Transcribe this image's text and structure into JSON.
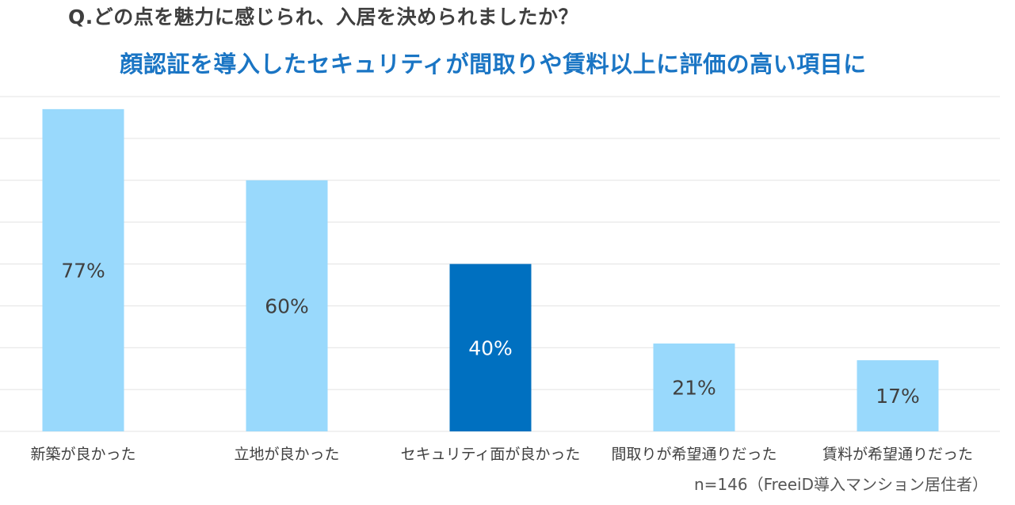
{
  "question": "Q.どの点を魅力に感じられ、入居を決められましたか？",
  "headline": "顔認証を導入したセキュリティが間取りや賃料以上に評価の高い項目に",
  "note": "n=146（FreeiD導入マンション居住者）",
  "chart_data": {
    "type": "bar",
    "categories": [
      "新築が良かった",
      "立地が良かった",
      "セキュリティ面が良かった",
      "間取りが希望通りだった",
      "賃料が希望通りだった"
    ],
    "values": [
      77,
      60,
      40,
      21,
      17
    ],
    "value_labels": [
      "77%",
      "60%",
      "40%",
      "21%",
      "17%"
    ],
    "highlight_index": 2,
    "ylim": [
      0,
      80
    ],
    "grid": true,
    "colors": {
      "bar": "#99d9fc",
      "highlight": "#0070c0",
      "grid": "#e3e3e3",
      "label": "#404040",
      "highlight_label": "#ffffff"
    }
  }
}
